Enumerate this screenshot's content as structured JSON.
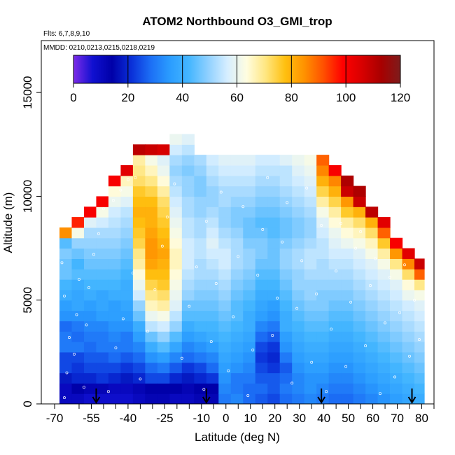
{
  "chart_data": {
    "type": "heatmap",
    "title": "ATOM2 Northbound O3_GMI_trop",
    "subtitle_flights": "Flts: 6,7,8,9,10",
    "subtitle_dates": "MMDD: 0210,0213,0215,0218,0219",
    "xlabel": "Latitude (deg N)",
    "ylabel": "Altitude (m)",
    "xlim": [
      -70,
      85
    ],
    "ylim": [
      0,
      17500
    ],
    "x_ticks": [
      -70,
      -55,
      -40,
      -25,
      -10,
      0,
      10,
      20,
      30,
      40,
      50,
      60,
      70,
      80
    ],
    "x_tick_labels": [
      "-70",
      "-55",
      "-40",
      "-25",
      "-10",
      "0",
      "10",
      "20",
      "30",
      "40",
      "50",
      "60",
      "70",
      "80"
    ],
    "x_minor_ticks": [
      -60,
      -50,
      -45,
      -35,
      -30,
      -20,
      -15,
      -5,
      5,
      15,
      25,
      35,
      45,
      55,
      65,
      75,
      85
    ],
    "y_ticks": [
      0,
      5000,
      10000,
      15000
    ],
    "y_tick_labels": [
      "0",
      "5000",
      "10000",
      "15000"
    ],
    "colorbar": {
      "min": 0,
      "max": 120,
      "ticks": [
        0,
        20,
        40,
        60,
        80,
        100,
        120
      ],
      "tick_labels": [
        "0",
        "20",
        "40",
        "60",
        "80",
        "100",
        "120"
      ],
      "colors": [
        "#7d2be8",
        "#1010d0",
        "#0000a8",
        "#0a2fd8",
        "#1c6ef5",
        "#2a9cff",
        "#44b6ff",
        "#8fd0ff",
        "#d6eeff",
        "#fffde0",
        "#ffe680",
        "#ffc010",
        "#ff9200",
        "#ff5000",
        "#ff0000",
        "#d80000",
        "#a80000",
        "#7d1c1c"
      ]
    },
    "heatmap": {
      "x_edges": [
        -68,
        -63,
        -58,
        -53,
        -48,
        -43,
        -38,
        -33,
        -28,
        -23,
        -18,
        -13,
        -8,
        -3,
        2,
        7,
        12,
        17,
        22,
        27,
        32,
        37,
        42,
        47,
        52,
        57,
        62,
        67,
        72,
        77,
        81
      ],
      "y_step": 500,
      "columns": [
        {
          "top": 8500,
          "values": [
            10,
            10,
            18,
            24,
            24,
            30,
            30,
            28,
            34,
            36,
            40,
            42,
            46,
            46,
            48,
            44,
            85
          ]
        },
        {
          "top": 9000,
          "values": [
            10,
            14,
            20,
            22,
            24,
            30,
            28,
            30,
            34,
            38,
            38,
            40,
            44,
            42,
            46,
            50,
            62,
            96
          ]
        },
        {
          "top": 9500,
          "values": [
            8,
            12,
            20,
            24,
            26,
            28,
            30,
            32,
            34,
            36,
            40,
            42,
            44,
            46,
            48,
            50,
            52,
            58,
            100
          ]
        },
        {
          "top": 10000,
          "values": [
            8,
            12,
            22,
            24,
            26,
            30,
            30,
            32,
            36,
            38,
            38,
            42,
            44,
            46,
            48,
            50,
            52,
            56,
            62,
            100
          ]
        },
        {
          "top": 11000,
          "values": [
            8,
            10,
            20,
            24,
            28,
            30,
            32,
            34,
            36,
            36,
            40,
            42,
            44,
            46,
            48,
            50,
            52,
            54,
            56,
            60,
            64,
            100
          ]
        },
        {
          "top": 11500,
          "values": [
            8,
            10,
            18,
            22,
            26,
            30,
            30,
            34,
            36,
            38,
            40,
            40,
            42,
            44,
            46,
            48,
            50,
            52,
            54,
            58,
            62,
            66,
            104
          ]
        },
        {
          "top": 12500,
          "values": [
            10,
            12,
            20,
            24,
            28,
            32,
            36,
            40,
            46,
            50,
            56,
            60,
            64,
            68,
            70,
            74,
            76,
            78,
            80,
            78,
            76,
            72,
            70,
            68,
            110
          ]
        },
        {
          "top": 12500,
          "values": [
            12,
            14,
            24,
            28,
            34,
            40,
            46,
            54,
            60,
            66,
            70,
            74,
            78,
            82,
            84,
            84,
            82,
            80,
            80,
            78,
            74,
            70,
            66,
            62,
            108
          ]
        },
        {
          "top": 12500,
          "values": [
            12,
            14,
            24,
            30,
            36,
            44,
            50,
            56,
            62,
            68,
            72,
            76,
            78,
            80,
            82,
            80,
            78,
            76,
            74,
            72,
            68,
            64,
            60,
            58,
            106
          ]
        },
        {
          "top": 13000,
          "values": [
            10,
            14,
            20,
            26,
            32,
            38,
            44,
            50,
            54,
            58,
            60,
            62,
            64,
            66,
            66,
            64,
            62,
            60,
            58,
            56,
            54,
            52,
            50,
            52,
            56,
            60
          ]
        },
        {
          "top": 13000,
          "values": [
            10,
            12,
            18,
            22,
            28,
            32,
            36,
            40,
            44,
            46,
            50,
            52,
            54,
            56,
            56,
            56,
            54,
            54,
            52,
            52,
            50,
            50,
            48,
            50,
            54,
            58
          ]
        },
        {
          "top": 12000,
          "values": [
            12,
            14,
            20,
            24,
            30,
            34,
            38,
            42,
            44,
            46,
            48,
            50,
            52,
            52,
            54,
            54,
            52,
            52,
            50,
            50,
            48,
            48,
            50,
            52
          ]
        },
        {
          "top": 12000,
          "values": [
            12,
            14,
            22,
            28,
            32,
            36,
            40,
            42,
            44,
            46,
            48,
            50,
            52,
            54,
            56,
            58,
            56,
            54,
            52,
            50,
            50,
            52,
            54,
            56
          ]
        },
        {
          "top": 12000,
          "values": [
            30,
            32,
            34,
            36,
            38,
            40,
            42,
            44,
            46,
            48,
            50,
            52,
            54,
            56,
            56,
            54,
            52,
            50,
            50,
            52,
            52,
            54,
            56,
            58
          ]
        },
        {
          "top": 12000,
          "values": [
            32,
            30,
            30,
            34,
            36,
            38,
            40,
            42,
            44,
            44,
            46,
            48,
            50,
            52,
            52,
            52,
            50,
            48,
            48,
            50,
            52,
            54,
            56,
            58
          ]
        },
        {
          "top": 12000,
          "values": [
            28,
            28,
            30,
            32,
            34,
            36,
            38,
            40,
            40,
            42,
            44,
            46,
            48,
            50,
            50,
            48,
            46,
            46,
            48,
            50,
            52,
            54,
            56,
            58
          ]
        },
        {
          "top": 12000,
          "values": [
            26,
            28,
            26,
            24,
            22,
            24,
            28,
            32,
            36,
            38,
            40,
            42,
            44,
            46,
            48,
            48,
            46,
            44,
            46,
            48,
            50,
            52,
            54,
            56
          ]
        },
        {
          "top": 12000,
          "values": [
            24,
            26,
            26,
            22,
            20,
            22,
            26,
            30,
            34,
            36,
            40,
            42,
            44,
            46,
            46,
            46,
            44,
            44,
            46,
            48,
            50,
            52,
            54,
            56
          ]
        },
        {
          "top": 12000,
          "values": [
            28,
            30,
            28,
            26,
            30,
            34,
            36,
            40,
            40,
            42,
            44,
            46,
            48,
            50,
            50,
            48,
            46,
            46,
            48,
            50,
            52,
            54,
            54,
            58
          ]
        },
        {
          "top": 12000,
          "values": [
            30,
            32,
            32,
            34,
            36,
            38,
            40,
            42,
            44,
            46,
            48,
            50,
            50,
            52,
            52,
            50,
            48,
            48,
            50,
            52,
            54,
            56,
            58,
            60
          ]
        },
        {
          "top": 12000,
          "values": [
            32,
            34,
            34,
            36,
            38,
            40,
            42,
            44,
            46,
            48,
            50,
            50,
            52,
            54,
            54,
            52,
            50,
            50,
            52,
            54,
            56,
            58,
            60,
            62
          ]
        },
        {
          "top": 12000,
          "values": [
            30,
            32,
            34,
            36,
            38,
            40,
            42,
            44,
            46,
            48,
            48,
            50,
            52,
            52,
            54,
            54,
            56,
            58,
            62,
            68,
            74,
            80,
            86,
            90
          ]
        },
        {
          "top": 11500,
          "values": [
            28,
            30,
            32,
            34,
            36,
            38,
            40,
            42,
            44,
            46,
            48,
            50,
            52,
            54,
            56,
            58,
            60,
            64,
            68,
            74,
            80,
            86,
            100
          ]
        },
        {
          "top": 11000,
          "values": [
            28,
            30,
            32,
            34,
            36,
            38,
            40,
            42,
            44,
            46,
            48,
            50,
            52,
            54,
            56,
            60,
            64,
            68,
            76,
            84,
            108,
            112
          ]
        },
        {
          "top": 10500,
          "values": [
            30,
            32,
            34,
            36,
            38,
            40,
            42,
            44,
            46,
            48,
            50,
            52,
            54,
            56,
            58,
            62,
            66,
            72,
            80,
            108,
            112
          ]
        },
        {
          "top": 9500,
          "values": [
            32,
            34,
            36,
            38,
            40,
            42,
            44,
            46,
            48,
            50,
            52,
            54,
            56,
            58,
            62,
            66,
            72,
            80,
            110
          ]
        },
        {
          "top": 9000,
          "values": [
            34,
            36,
            38,
            40,
            42,
            44,
            46,
            48,
            50,
            52,
            54,
            56,
            58,
            62,
            68,
            76,
            90,
            104
          ]
        },
        {
          "top": 8000,
          "values": [
            36,
            38,
            40,
            42,
            44,
            46,
            48,
            50,
            52,
            54,
            56,
            58,
            62,
            70,
            84,
            100
          ]
        },
        {
          "top": 7500,
          "values": [
            38,
            40,
            42,
            44,
            46,
            48,
            50,
            52,
            54,
            56,
            60,
            64,
            72,
            86,
            104
          ]
        },
        {
          "top": 7000,
          "values": [
            40,
            42,
            44,
            46,
            48,
            50,
            52,
            54,
            56,
            58,
            62,
            70,
            90,
            108
          ]
        }
      ]
    },
    "sample_points": [
      [
        -66,
        300
      ],
      [
        -65,
        1500
      ],
      [
        -64,
        3200
      ],
      [
        -66,
        5200
      ],
      [
        -67,
        6800
      ],
      [
        -62,
        2400
      ],
      [
        -61,
        4300
      ],
      [
        -60,
        6000
      ],
      [
        -58,
        800
      ],
      [
        -57,
        3800
      ],
      [
        -56,
        5600
      ],
      [
        -54,
        7200
      ],
      [
        -52,
        8200
      ],
      [
        -50,
        9400
      ],
      [
        -46,
        9800
      ],
      [
        -43,
        10300
      ],
      [
        -40,
        10800
      ],
      [
        -37,
        10900
      ],
      [
        -48,
        600
      ],
      [
        -45,
        2700
      ],
      [
        -42,
        4100
      ],
      [
        -38,
        6300
      ],
      [
        -35,
        1200
      ],
      [
        -32,
        3500
      ],
      [
        -29,
        5500
      ],
      [
        -26,
        7600
      ],
      [
        -24,
        9000
      ],
      [
        -21,
        10600
      ],
      [
        -18,
        2200
      ],
      [
        -15,
        4700
      ],
      [
        -12,
        6600
      ],
      [
        -9,
        700
      ],
      [
        -8,
        8800
      ],
      [
        -6,
        3000
      ],
      [
        -4,
        5800
      ],
      [
        -2,
        10200
      ],
      [
        1,
        1600
      ],
      [
        3,
        4200
      ],
      [
        5,
        7100
      ],
      [
        7,
        9500
      ],
      [
        9,
        400
      ],
      [
        11,
        2600
      ],
      [
        13,
        6200
      ],
      [
        15,
        8400
      ],
      [
        17,
        10900
      ],
      [
        19,
        3300
      ],
      [
        21,
        5100
      ],
      [
        23,
        7800
      ],
      [
        25,
        9700
      ],
      [
        27,
        1000
      ],
      [
        29,
        4600
      ],
      [
        31,
        6900
      ],
      [
        33,
        10400
      ],
      [
        35,
        2000
      ],
      [
        37,
        5300
      ],
      [
        39,
        8600
      ],
      [
        41,
        600
      ],
      [
        43,
        3600
      ],
      [
        45,
        6400
      ],
      [
        47,
        8700
      ],
      [
        49,
        1800
      ],
      [
        51,
        4900
      ],
      [
        53,
        7500
      ],
      [
        55,
        8300
      ],
      [
        57,
        2800
      ],
      [
        59,
        5700
      ],
      [
        61,
        7000
      ],
      [
        63,
        500
      ],
      [
        65,
        3900
      ],
      [
        67,
        6100
      ],
      [
        69,
        1300
      ],
      [
        71,
        4400
      ],
      [
        73,
        6700
      ],
      [
        75,
        2300
      ],
      [
        77,
        5000
      ],
      [
        79,
        3100
      ]
    ],
    "flight_arrows": [
      -53,
      -8,
      39,
      76
    ]
  }
}
